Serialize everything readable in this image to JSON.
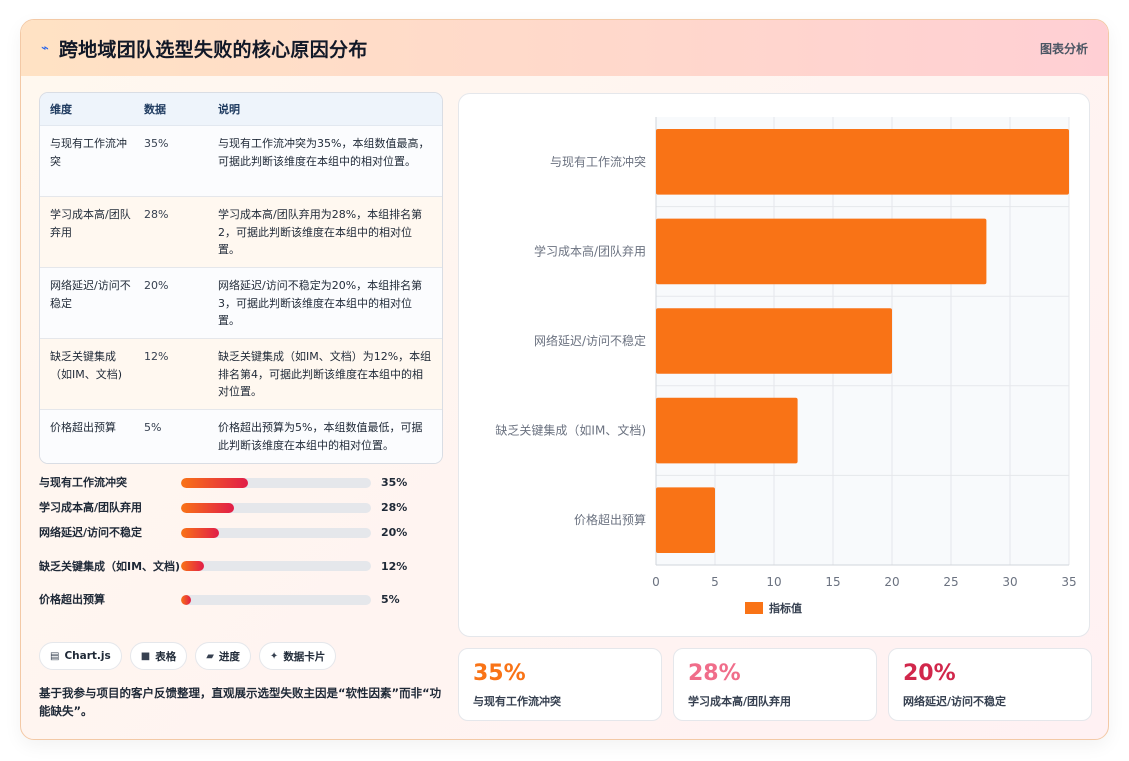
{
  "header": {
    "title": "跨地域团队选型失败的核心原因分布",
    "tag": "图表分析",
    "icon": "bolt-icon"
  },
  "table": {
    "columns": [
      "维度",
      "数据",
      "说明"
    ],
    "rows": [
      {
        "dim": "与现有工作流冲突",
        "value": "35%",
        "desc": "与现有工作流冲突为35%，本组数值最高，可据此判断该维度在本组中的相对位置。"
      },
      {
        "dim": "学习成本高/团队弃用",
        "value": "28%",
        "desc": "学习成本高/团队弃用为28%，本组排名第2，可据此判断该维度在本组中的相对位置。"
      },
      {
        "dim": "网络延迟/访问不稳定",
        "value": "20%",
        "desc": "网络延迟/访问不稳定为20%，本组排名第3，可据此判断该维度在本组中的相对位置。"
      },
      {
        "dim": "缺乏关键集成（如IM、文档)",
        "value": "12%",
        "desc": "缺乏关键集成（如IM、文档）为12%，本组排名第4，可据此判断该维度在本组中的相对位置。"
      },
      {
        "dim": "价格超出预算",
        "value": "5%",
        "desc": "价格超出预算为5%，本组数值最低，可据此判断该维度在本组中的相对位置。"
      }
    ]
  },
  "progress": [
    {
      "label": "与现有工作流冲突",
      "value": "35%",
      "fraction": 0.35
    },
    {
      "label": "学习成本高/团队弃用",
      "value": "28%",
      "fraction": 0.28
    },
    {
      "label": "网络延迟/访问不稳定",
      "value": "20%",
      "fraction": 0.2
    },
    {
      "label": "缺乏关键集成（如IM、文档)",
      "value": "12%",
      "fraction": 0.12
    },
    {
      "label": "价格超出预算",
      "value": "5%",
      "fraction": 0.05
    }
  ],
  "chips": [
    {
      "icon": "▤",
      "label": "Chart.js"
    },
    {
      "icon": "■",
      "label": "表格"
    },
    {
      "icon": "▰",
      "label": "进度"
    },
    {
      "icon": "✦",
      "label": "数据卡片"
    }
  ],
  "note": "基于我参与项目的客户反馈整理，直观展示选型失败主因是“软性因素”而非“功能缺失”。",
  "kpis": [
    {
      "value": "35%",
      "label": "与现有工作流冲突",
      "color": "#f97316"
    },
    {
      "value": "28%",
      "label": "学习成本高/团队弃用",
      "color": "#f06d8a"
    },
    {
      "value": "20%",
      "label": "网络延迟/访问不稳定",
      "color": "#d1274b"
    }
  ],
  "chart_data": {
    "type": "bar",
    "orientation": "horizontal",
    "categories": [
      "与现有工作流冲突",
      "学习成本高/团队弃用",
      "网络延迟/访问不稳定",
      "缺乏关键集成（如IM、文档)",
      "价格超出预算"
    ],
    "series": [
      {
        "name": "指标值",
        "values": [
          35,
          28,
          20,
          12,
          5
        ],
        "color": "#f97316"
      }
    ],
    "xlim": [
      0,
      35
    ],
    "xticks": [
      0,
      5,
      10,
      15,
      20,
      25,
      30,
      35
    ],
    "grid": true,
    "legend": "bottom"
  }
}
